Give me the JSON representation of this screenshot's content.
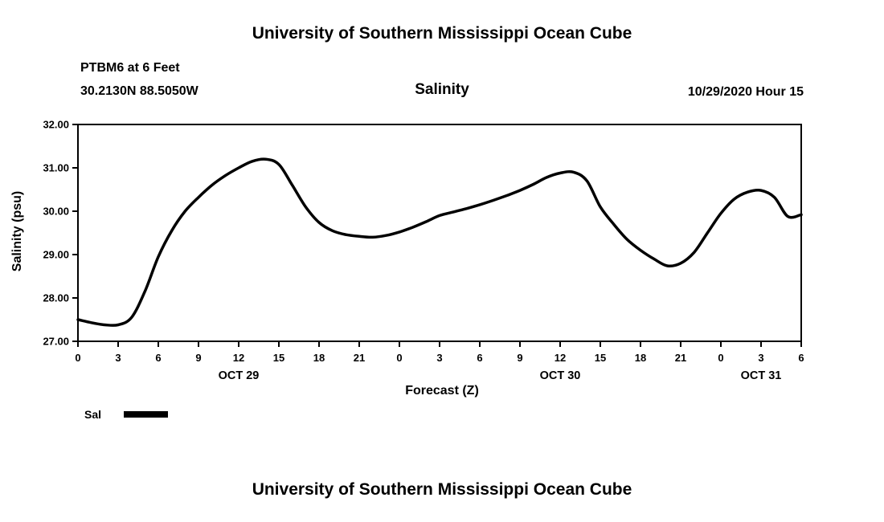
{
  "page": {
    "top_title": "University of Southern Mississippi Ocean Cube",
    "bottom_title": "University of Southern Mississippi Ocean Cube"
  },
  "header": {
    "station_line1": "PTBM6 at 6 Feet",
    "station_line2": "30.2130N 88.5050W",
    "plot_title": "Salinity",
    "datetime": "10/29/2020 Hour 15"
  },
  "legend": {
    "label": "Sal",
    "color": "#000000"
  },
  "chart_data": {
    "type": "line",
    "title": "Salinity",
    "xlabel": "Forecast (Z)",
    "ylabel": "Salinity (psu)",
    "ylim": [
      27.0,
      32.0
    ],
    "yticks": [
      27,
      28,
      29,
      30,
      31,
      32
    ],
    "ytick_labels": [
      "27.00",
      "28.00",
      "29.00",
      "30.00",
      "31.00",
      "32.00"
    ],
    "x_range_hours": [
      0,
      54
    ],
    "xtick_hours": [
      0,
      3,
      6,
      9,
      12,
      15,
      18,
      21,
      24,
      27,
      30,
      33,
      36,
      39,
      42,
      45,
      48,
      51,
      54
    ],
    "xtick_labels": [
      "0",
      "3",
      "6",
      "9",
      "12",
      "15",
      "18",
      "21",
      "0",
      "3",
      "6",
      "9",
      "12",
      "15",
      "18",
      "21",
      "0",
      "3",
      "6"
    ],
    "date_labels": [
      {
        "label": "OCT 29",
        "hour": 12
      },
      {
        "label": "OCT 30",
        "hour": 36
      },
      {
        "label": "OCT 31",
        "hour": 51
      }
    ],
    "grid": false,
    "legend_position": "bottom-left",
    "series": [
      {
        "name": "Sal",
        "color": "#000000",
        "x": [
          0,
          1,
          2,
          3,
          4,
          5,
          6,
          7,
          8,
          9,
          10,
          11,
          12,
          13,
          14,
          15,
          16,
          17,
          18,
          19,
          20,
          21,
          22,
          23,
          24,
          25,
          26,
          27,
          28,
          29,
          30,
          31,
          32,
          33,
          34,
          35,
          36,
          37,
          38,
          39,
          40,
          41,
          42,
          43,
          44,
          45,
          46,
          47,
          48,
          49,
          50,
          51,
          52,
          53,
          54
        ],
        "values": [
          27.5,
          27.43,
          27.38,
          27.38,
          27.55,
          28.15,
          28.95,
          29.55,
          30.0,
          30.32,
          30.6,
          30.82,
          31.0,
          31.15,
          31.2,
          31.08,
          30.6,
          30.1,
          29.74,
          29.55,
          29.46,
          29.42,
          29.4,
          29.44,
          29.52,
          29.63,
          29.76,
          29.9,
          29.98,
          30.06,
          30.15,
          30.25,
          30.36,
          30.48,
          30.62,
          30.78,
          30.88,
          30.9,
          30.7,
          30.1,
          29.7,
          29.35,
          29.1,
          28.9,
          28.74,
          28.8,
          29.05,
          29.5,
          29.95,
          30.28,
          30.44,
          30.48,
          30.32,
          29.88,
          29.92
        ]
      }
    ]
  }
}
